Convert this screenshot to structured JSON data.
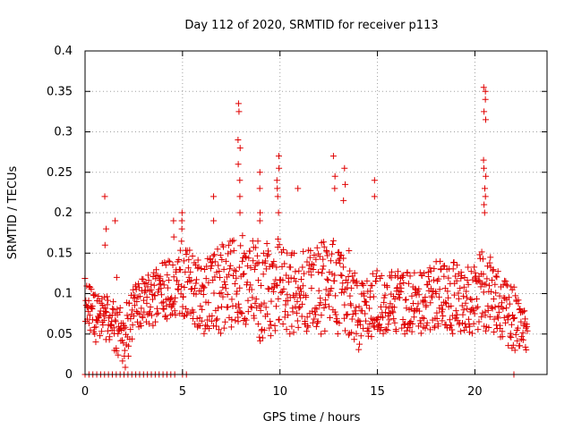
{
  "chart_data": {
    "type": "scatter",
    "title": "Day 112 of 2020, SRMTID for receiver p113",
    "xlabel": "GPS time / hours",
    "ylabel": "SRMTID / TECUs",
    "xlim": [
      0,
      23.7
    ],
    "ylim": [
      0,
      0.4
    ],
    "grid": true,
    "marker": "+",
    "color": "#e00000",
    "x_ticks": [
      0,
      5,
      10,
      15,
      20
    ],
    "x_tick_labels": [
      "0",
      "5",
      "10",
      "15",
      "20"
    ],
    "y_ticks": [
      0,
      0.05,
      0.1,
      0.15,
      0.2,
      0.25,
      0.3,
      0.35,
      0.4
    ],
    "y_tick_labels": [
      "0",
      "0.05",
      "0.1",
      "0.15",
      "0.2",
      "0.25",
      "0.3",
      "0.35",
      "0.4"
    ],
    "envelope": {
      "x": [
        0,
        0.5,
        1,
        1.5,
        2,
        2.5,
        3,
        3.5,
        4,
        4.5,
        5,
        5.5,
        6,
        6.5,
        7,
        7.5,
        8,
        8.5,
        9,
        9.5,
        10,
        10.5,
        11,
        11.5,
        12,
        12.5,
        13,
        13.5,
        14,
        14.5,
        15,
        15.5,
        16,
        16.5,
        17,
        17.5,
        18,
        18.5,
        19,
        19.5,
        20,
        20.5,
        21,
        21.5,
        22,
        22.5
      ],
      "low": [
        0.06,
        0.04,
        0.04,
        0.03,
        0.0,
        0.05,
        0.06,
        0.06,
        0.07,
        0.06,
        0.07,
        0.06,
        0.05,
        0.05,
        0.05,
        0.05,
        0.06,
        0.06,
        0.04,
        0.03,
        0.05,
        0.05,
        0.05,
        0.05,
        0.05,
        0.05,
        0.05,
        0.04,
        0.03,
        0.04,
        0.05,
        0.05,
        0.05,
        0.05,
        0.05,
        0.05,
        0.05,
        0.05,
        0.05,
        0.05,
        0.05,
        0.05,
        0.05,
        0.04,
        0.03,
        0.02
      ],
      "mid": [
        0.09,
        0.08,
        0.08,
        0.07,
        0.05,
        0.08,
        0.09,
        0.1,
        0.11,
        0.1,
        0.12,
        0.1,
        0.1,
        0.11,
        0.12,
        0.12,
        0.12,
        0.12,
        0.11,
        0.1,
        0.11,
        0.11,
        0.1,
        0.1,
        0.11,
        0.12,
        0.12,
        0.11,
        0.07,
        0.08,
        0.09,
        0.09,
        0.09,
        0.09,
        0.09,
        0.09,
        0.09,
        0.09,
        0.09,
        0.09,
        0.09,
        0.1,
        0.1,
        0.09,
        0.07,
        0.05
      ],
      "high": [
        0.12,
        0.1,
        0.1,
        0.09,
        0.09,
        0.11,
        0.12,
        0.13,
        0.15,
        0.14,
        0.17,
        0.15,
        0.14,
        0.15,
        0.16,
        0.17,
        0.18,
        0.17,
        0.17,
        0.16,
        0.17,
        0.16,
        0.15,
        0.16,
        0.16,
        0.17,
        0.17,
        0.16,
        0.11,
        0.12,
        0.13,
        0.13,
        0.13,
        0.13,
        0.13,
        0.13,
        0.14,
        0.14,
        0.14,
        0.13,
        0.14,
        0.16,
        0.14,
        0.13,
        0.11,
        0.08
      ]
    },
    "spikes": [
      {
        "x": 1.05,
        "values": [
          0.22,
          0.18,
          0.16
        ]
      },
      {
        "x": 1.6,
        "values": [
          0.19,
          0.12
        ]
      },
      {
        "x": 4.5,
        "values": [
          0.19,
          0.17
        ]
      },
      {
        "x": 5.0,
        "values": [
          0.2,
          0.19,
          0.18
        ]
      },
      {
        "x": 6.6,
        "values": [
          0.22,
          0.19
        ]
      },
      {
        "x": 7.9,
        "values": [
          0.335,
          0.325,
          0.29,
          0.28,
          0.26,
          0.24,
          0.22,
          0.2
        ]
      },
      {
        "x": 8.95,
        "values": [
          0.25,
          0.23,
          0.2,
          0.19
        ]
      },
      {
        "x": 9.9,
        "values": [
          0.27,
          0.255,
          0.24,
          0.23,
          0.22,
          0.2
        ]
      },
      {
        "x": 10.9,
        "values": [
          0.23
        ]
      },
      {
        "x": 12.8,
        "values": [
          0.27,
          0.245,
          0.23
        ]
      },
      {
        "x": 13.3,
        "values": [
          0.255,
          0.235,
          0.215
        ]
      },
      {
        "x": 14.8,
        "values": [
          0.24,
          0.22
        ]
      },
      {
        "x": 20.5,
        "values": [
          0.355,
          0.35,
          0.34,
          0.325,
          0.315,
          0.265,
          0.255,
          0.245,
          0.23,
          0.22,
          0.21,
          0.2
        ]
      }
    ],
    "zero_points_x": [
      0,
      0.2,
      0.4,
      0.6,
      0.8,
      1.0,
      1.2,
      1.4,
      1.6,
      1.8,
      2.0,
      2.2,
      2.4,
      2.6,
      2.8,
      3.0,
      3.2,
      3.4,
      3.6,
      3.8,
      4.0,
      4.2,
      4.4,
      4.6,
      5.0,
      5.2,
      22.0
    ]
  }
}
